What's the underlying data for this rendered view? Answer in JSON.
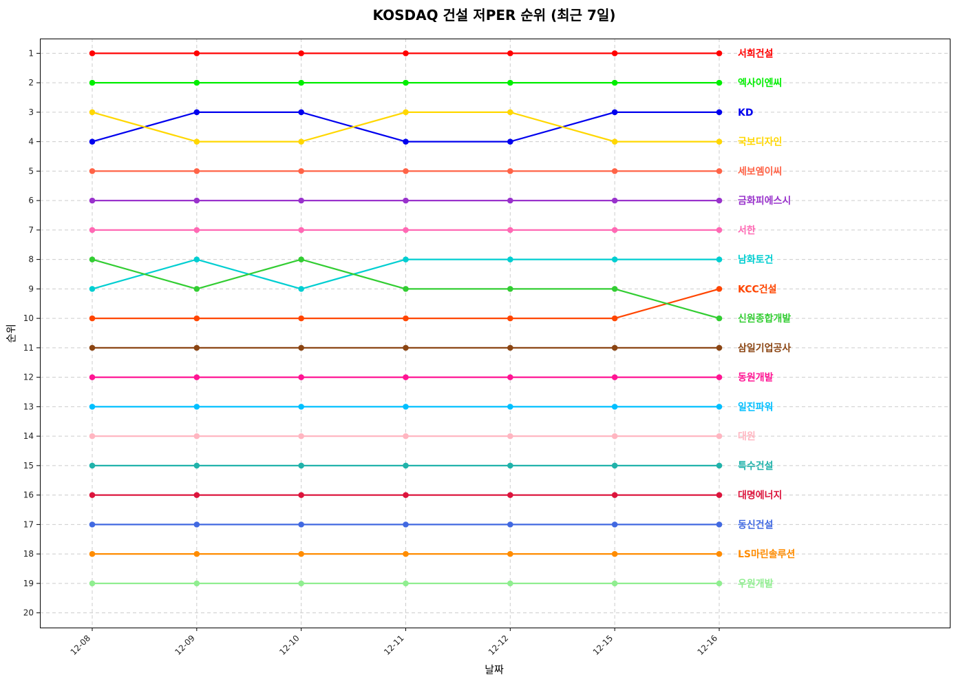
{
  "chart_data": {
    "type": "line",
    "title": "KOSDAQ 건설 저PER 순위 (최근 7일)",
    "xlabel": "날짜",
    "ylabel": "순위",
    "categories": [
      "12-08",
      "12-09",
      "12-10",
      "12-11",
      "12-12",
      "12-15",
      "12-16"
    ],
    "y_ticks": [
      1,
      2,
      3,
      4,
      5,
      6,
      7,
      8,
      9,
      10,
      11,
      12,
      13,
      14,
      15,
      16,
      17,
      18,
      19,
      20
    ],
    "ylim": [
      20.5,
      0.5
    ],
    "y_inverted": true,
    "grid": true,
    "legend": "end-labels-right",
    "series": [
      {
        "name": "서희건설",
        "color": "#ff0000",
        "values": [
          1,
          1,
          1,
          1,
          1,
          1,
          1
        ]
      },
      {
        "name": "엑사이엔씨",
        "color": "#00ee00",
        "values": [
          2,
          2,
          2,
          2,
          2,
          2,
          2
        ]
      },
      {
        "name": "KD",
        "color": "#0000ee",
        "values": [
          4,
          3,
          3,
          4,
          4,
          3,
          3
        ]
      },
      {
        "name": "국보디자인",
        "color": "#ffd700",
        "values": [
          3,
          4,
          4,
          3,
          3,
          4,
          4
        ]
      },
      {
        "name": "세보엠이씨",
        "color": "#ff6347",
        "values": [
          5,
          5,
          5,
          5,
          5,
          5,
          5
        ]
      },
      {
        "name": "금화피에스시",
        "color": "#9932cc",
        "values": [
          6,
          6,
          6,
          6,
          6,
          6,
          6
        ]
      },
      {
        "name": "서한",
        "color": "#ff69b4",
        "values": [
          7,
          7,
          7,
          7,
          7,
          7,
          7
        ]
      },
      {
        "name": "남화토건",
        "color": "#00ced1",
        "values": [
          9,
          8,
          9,
          8,
          8,
          8,
          8
        ]
      },
      {
        "name": "KCC건설",
        "color": "#ff4500",
        "values": [
          10,
          10,
          10,
          10,
          10,
          10,
          9
        ]
      },
      {
        "name": "신원종합개발",
        "color": "#32cd32",
        "values": [
          8,
          9,
          8,
          9,
          9,
          9,
          10
        ]
      },
      {
        "name": "삼일기업공사",
        "color": "#8b4513",
        "values": [
          11,
          11,
          11,
          11,
          11,
          11,
          11
        ]
      },
      {
        "name": "동원개발",
        "color": "#ff1493",
        "values": [
          12,
          12,
          12,
          12,
          12,
          12,
          12
        ]
      },
      {
        "name": "일진파워",
        "color": "#00bfff",
        "values": [
          13,
          13,
          13,
          13,
          13,
          13,
          13
        ]
      },
      {
        "name": "대원",
        "color": "#ffb6c1",
        "values": [
          14,
          14,
          14,
          14,
          14,
          14,
          14
        ]
      },
      {
        "name": "특수건설",
        "color": "#20b2aa",
        "values": [
          15,
          15,
          15,
          15,
          15,
          15,
          15
        ]
      },
      {
        "name": "대명에너지",
        "color": "#dc143c",
        "values": [
          16,
          16,
          16,
          16,
          16,
          16,
          16
        ]
      },
      {
        "name": "동신건설",
        "color": "#4169e1",
        "values": [
          17,
          17,
          17,
          17,
          17,
          17,
          17
        ]
      },
      {
        "name": "LS마린솔루션",
        "color": "#ff8c00",
        "values": [
          18,
          18,
          18,
          18,
          18,
          18,
          18
        ]
      },
      {
        "name": "우원개발",
        "color": "#90ee90",
        "values": [
          19,
          19,
          19,
          19,
          19,
          19,
          19
        ]
      }
    ]
  }
}
